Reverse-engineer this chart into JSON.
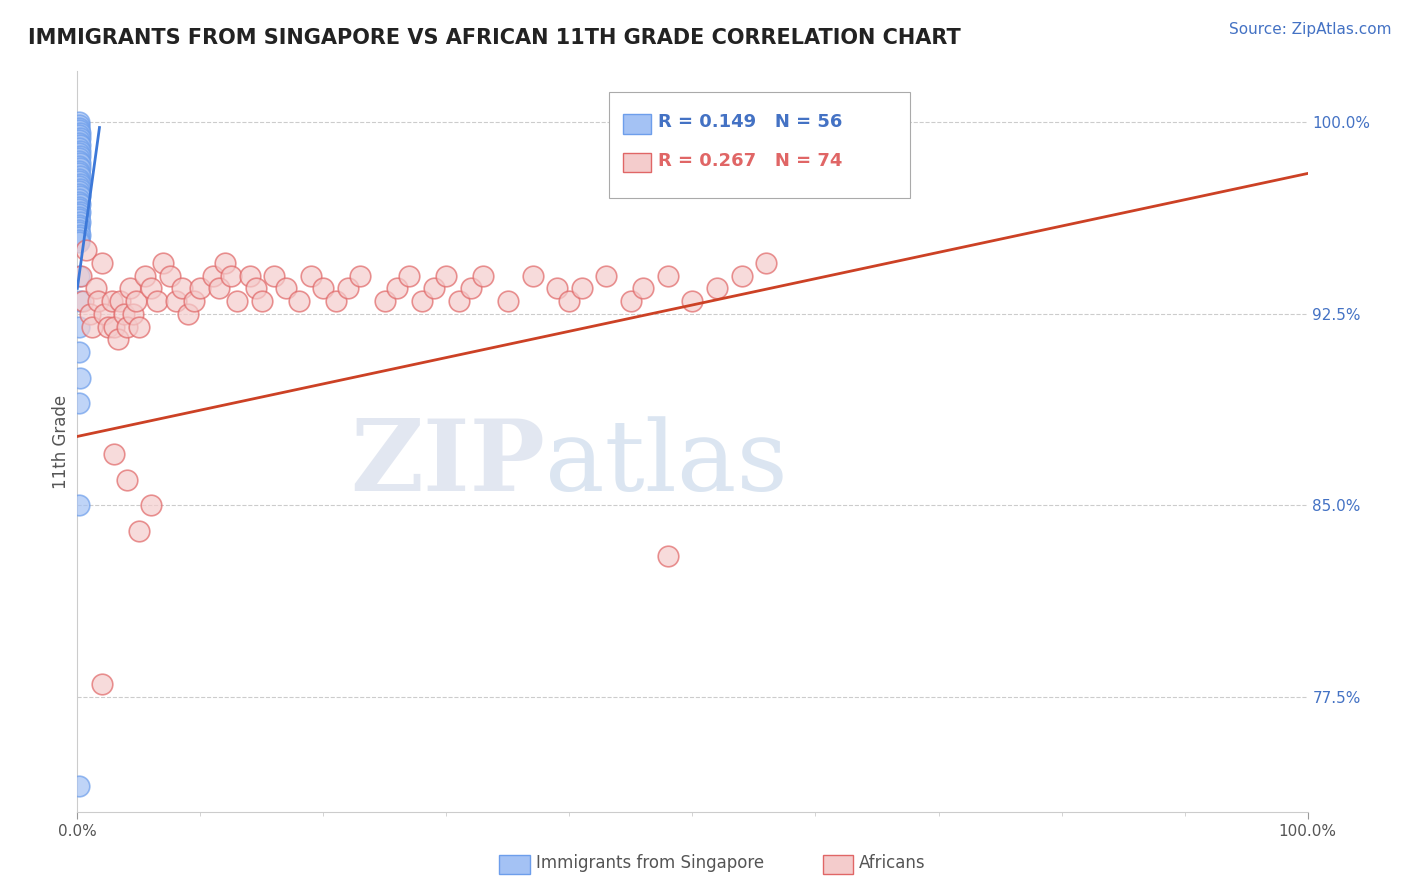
{
  "title": "IMMIGRANTS FROM SINGAPORE VS AFRICAN 11TH GRADE CORRELATION CHART",
  "source_text": "Source: ZipAtlas.com",
  "ylabel": "11th Grade",
  "xlim": [
    0.0,
    1.0
  ],
  "ylim": [
    0.73,
    1.02
  ],
  "yticks": [
    0.775,
    0.85,
    0.925,
    1.0
  ],
  "ytick_labels": [
    "77.5%",
    "85.0%",
    "92.5%",
    "100.0%"
  ],
  "legend_r1": "R = 0.149",
  "legend_n1": "N = 56",
  "legend_r2": "R = 0.267",
  "legend_n2": "N = 74",
  "legend_label1": "Immigrants from Singapore",
  "legend_label2": "Africans",
  "color_blue": "#a4c2f4",
  "color_pink": "#f4cccc",
  "color_blue_edge": "#6d9eeb",
  "color_pink_edge": "#e06666",
  "color_blue_line": "#3c78d8",
  "color_pink_line": "#cc4125",
  "watermark_zip": "ZIP",
  "watermark_atlas": "atlas",
  "blue_x": [
    0.001,
    0.001,
    0.001,
    0.001,
    0.002,
    0.001,
    0.002,
    0.001,
    0.001,
    0.002,
    0.001,
    0.002,
    0.001,
    0.002,
    0.001,
    0.001,
    0.002,
    0.001,
    0.002,
    0.001,
    0.001,
    0.002,
    0.001,
    0.001,
    0.002,
    0.001,
    0.002,
    0.001,
    0.001,
    0.002,
    0.001,
    0.001,
    0.002,
    0.001,
    0.001,
    0.002,
    0.001,
    0.001,
    0.001,
    0.002,
    0.001,
    0.001,
    0.001,
    0.001,
    0.002,
    0.001,
    0.001,
    0.001,
    0.001,
    0.002,
    0.001,
    0.001,
    0.002,
    0.001,
    0.001,
    0.001
  ],
  "blue_y": [
    1.0,
    0.999,
    0.998,
    0.997,
    0.996,
    0.995,
    0.994,
    0.993,
    0.992,
    0.991,
    0.99,
    0.989,
    0.988,
    0.987,
    0.986,
    0.985,
    0.984,
    0.983,
    0.982,
    0.981,
    0.98,
    0.979,
    0.978,
    0.977,
    0.976,
    0.975,
    0.974,
    0.973,
    0.972,
    0.971,
    0.97,
    0.969,
    0.968,
    0.967,
    0.966,
    0.965,
    0.964,
    0.963,
    0.962,
    0.961,
    0.96,
    0.959,
    0.958,
    0.957,
    0.956,
    0.955,
    0.954,
    0.953,
    0.94,
    0.93,
    0.92,
    0.91,
    0.9,
    0.89,
    0.85,
    0.74
  ],
  "pink_x": [
    0.003,
    0.005,
    0.007,
    0.01,
    0.012,
    0.015,
    0.017,
    0.02,
    0.022,
    0.025,
    0.028,
    0.03,
    0.033,
    0.035,
    0.038,
    0.04,
    0.043,
    0.045,
    0.048,
    0.05,
    0.055,
    0.06,
    0.065,
    0.07,
    0.075,
    0.08,
    0.085,
    0.09,
    0.095,
    0.1,
    0.11,
    0.115,
    0.12,
    0.125,
    0.13,
    0.14,
    0.145,
    0.15,
    0.16,
    0.17,
    0.18,
    0.19,
    0.2,
    0.21,
    0.22,
    0.23,
    0.25,
    0.26,
    0.27,
    0.28,
    0.29,
    0.3,
    0.31,
    0.32,
    0.33,
    0.35,
    0.37,
    0.39,
    0.4,
    0.41,
    0.43,
    0.45,
    0.46,
    0.48,
    0.5,
    0.52,
    0.54,
    0.56,
    0.03,
    0.04,
    0.05,
    0.06,
    0.02,
    0.48
  ],
  "pink_y": [
    0.94,
    0.93,
    0.95,
    0.925,
    0.92,
    0.935,
    0.93,
    0.945,
    0.925,
    0.92,
    0.93,
    0.92,
    0.915,
    0.93,
    0.925,
    0.92,
    0.935,
    0.925,
    0.93,
    0.92,
    0.94,
    0.935,
    0.93,
    0.945,
    0.94,
    0.93,
    0.935,
    0.925,
    0.93,
    0.935,
    0.94,
    0.935,
    0.945,
    0.94,
    0.93,
    0.94,
    0.935,
    0.93,
    0.94,
    0.935,
    0.93,
    0.94,
    0.935,
    0.93,
    0.935,
    0.94,
    0.93,
    0.935,
    0.94,
    0.93,
    0.935,
    0.94,
    0.93,
    0.935,
    0.94,
    0.93,
    0.94,
    0.935,
    0.93,
    0.935,
    0.94,
    0.93,
    0.935,
    0.94,
    0.93,
    0.935,
    0.94,
    0.945,
    0.87,
    0.86,
    0.84,
    0.85,
    0.78,
    0.83
  ],
  "pink_line_x0": 0.0,
  "pink_line_y0": 0.877,
  "pink_line_x1": 1.0,
  "pink_line_y1": 0.98,
  "blue_line_x0": 0.0,
  "blue_line_y0": 0.935,
  "blue_line_x1": 0.018,
  "blue_line_y1": 0.998
}
